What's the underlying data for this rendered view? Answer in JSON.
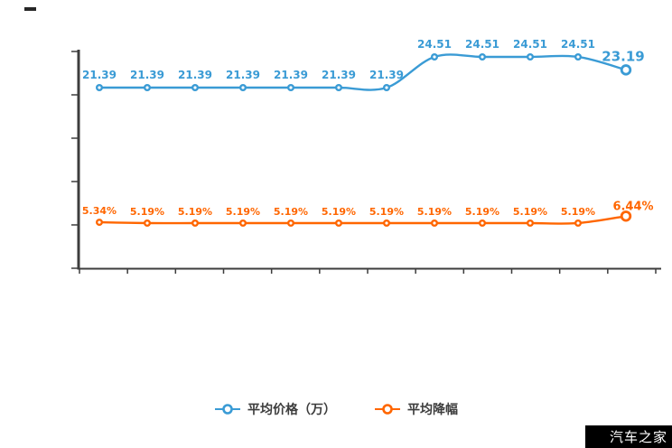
{
  "watermark": {
    "text": "汽车之家",
    "background": "#000000",
    "text_color": "#ffffff"
  },
  "legend": {
    "items": [
      {
        "label": "平均价格（万）",
        "color": "#3a9bd5"
      },
      {
        "label": "平均降幅",
        "color": "#ff6600"
      }
    ]
  },
  "chart_data": {
    "type": "line",
    "title": "",
    "xlabel": "",
    "ylabel": "",
    "x_count": 12,
    "x_tick_labels": [],
    "grid": false,
    "legend_position": "bottom",
    "axes": {
      "y_left_ticks": 6,
      "x_ticks": 13,
      "tick_labels_visible": false
    },
    "series": [
      {
        "name": "平均价格（万）",
        "color": "#3a9bd5",
        "unit": "万",
        "values": [
          21.39,
          21.39,
          21.39,
          21.39,
          21.39,
          21.39,
          21.39,
          24.51,
          24.51,
          24.51,
          24.51,
          23.19
        ],
        "labels": [
          "21.39",
          "21.39",
          "21.39",
          "21.39",
          "21.39",
          "21.39",
          "21.39",
          "24.51",
          "24.51",
          "24.51",
          "24.51",
          "23.19"
        ]
      },
      {
        "name": "平均降幅",
        "color": "#ff6600",
        "unit": "%",
        "values": [
          5.34,
          5.19,
          5.19,
          5.19,
          5.19,
          5.19,
          5.19,
          5.19,
          5.19,
          5.19,
          5.19,
          6.44
        ],
        "labels": [
          "5.34%",
          "5.19%",
          "5.19%",
          "5.19%",
          "5.19%",
          "5.19%",
          "5.19%",
          "5.19%",
          "5.19%",
          "5.19%",
          "5.19%",
          "6.44%"
        ]
      }
    ]
  }
}
